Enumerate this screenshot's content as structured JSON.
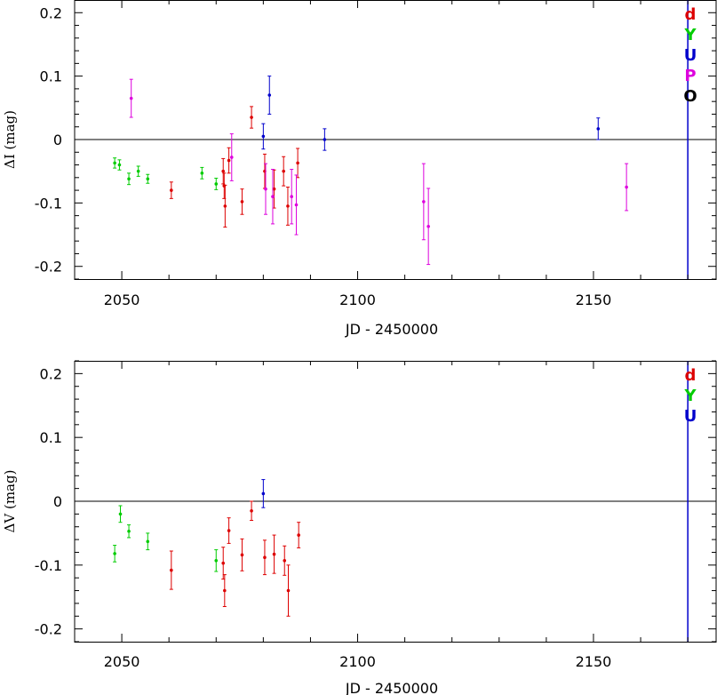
{
  "chart_data": [
    {
      "type": "scatter",
      "title": "",
      "xlabel": "JD - 2450000",
      "ylabel": "ΔI (mag)",
      "xlim": [
        2040,
        2176
      ],
      "ylim": [
        -0.22,
        0.22
      ],
      "xticks": [
        2050,
        2100,
        2150
      ],
      "xtick_labels": [
        "2050",
        "2100",
        "2150"
      ],
      "yticks": [
        -0.2,
        -0.1,
        0,
        0.1,
        0.2
      ],
      "ytick_labels": [
        "-0.2",
        "-0.1",
        "0",
        "0.1",
        "0.2"
      ],
      "zero_line": true,
      "vertical_line_x": 2170,
      "vertical_line_color": "#0000cc",
      "legend_position": "top-right",
      "legend": [
        {
          "label": "d",
          "color": "#dd0000"
        },
        {
          "label": "Y",
          "color": "#00cc00"
        },
        {
          "label": "U",
          "color": "#0000cc"
        },
        {
          "label": "P",
          "color": "#dd00dd"
        },
        {
          "label": "O",
          "color": "#000000"
        }
      ],
      "series": [
        {
          "color": "#00cc00",
          "points": [
            {
              "x": 2048.5,
              "y": -0.037,
              "err": 0.008
            },
            {
              "x": 2049.5,
              "y": -0.04,
              "err": 0.008
            },
            {
              "x": 2051.5,
              "y": -0.062,
              "err": 0.009
            },
            {
              "x": 2053.5,
              "y": -0.05,
              "err": 0.008
            },
            {
              "x": 2055.5,
              "y": -0.062,
              "err": 0.007
            },
            {
              "x": 2067.0,
              "y": -0.053,
              "err": 0.009
            },
            {
              "x": 2070.0,
              "y": -0.07,
              "err": 0.009
            }
          ]
        },
        {
          "color": "#dd0000",
          "points": [
            {
              "x": 2060.5,
              "y": -0.08,
              "err": 0.013
            },
            {
              "x": 2071.5,
              "y": -0.05,
              "err": 0.02
            },
            {
              "x": 2071.7,
              "y": -0.073,
              "err": 0.02
            },
            {
              "x": 2071.9,
              "y": -0.105,
              "err": 0.033
            },
            {
              "x": 2072.7,
              "y": -0.033,
              "err": 0.02
            },
            {
              "x": 2075.5,
              "y": -0.098,
              "err": 0.02
            },
            {
              "x": 2077.5,
              "y": 0.035,
              "err": 0.017
            },
            {
              "x": 2080.3,
              "y": -0.05,
              "err": 0.027
            },
            {
              "x": 2082.3,
              "y": -0.078,
              "err": 0.03
            },
            {
              "x": 2084.3,
              "y": -0.05,
              "err": 0.023
            },
            {
              "x": 2085.2,
              "y": -0.105,
              "err": 0.03
            },
            {
              "x": 2087.3,
              "y": -0.037,
              "err": 0.023
            }
          ]
        },
        {
          "color": "#0000cc",
          "points": [
            {
              "x": 2080.0,
              "y": 0.005,
              "err": 0.02
            },
            {
              "x": 2081.3,
              "y": 0.07,
              "err": 0.03
            },
            {
              "x": 2093.0,
              "y": 0.0,
              "err": 0.017
            },
            {
              "x": 2151.0,
              "y": 0.017,
              "err": 0.017
            }
          ]
        },
        {
          "color": "#dd00dd",
          "points": [
            {
              "x": 2052.0,
              "y": 0.065,
              "err": 0.03
            },
            {
              "x": 2073.3,
              "y": -0.028,
              "err": 0.037
            },
            {
              "x": 2080.5,
              "y": -0.078,
              "err": 0.04
            },
            {
              "x": 2082.0,
              "y": -0.09,
              "err": 0.043
            },
            {
              "x": 2086.0,
              "y": -0.09,
              "err": 0.043
            },
            {
              "x": 2087.0,
              "y": -0.103,
              "err": 0.047
            },
            {
              "x": 2114.0,
              "y": -0.098,
              "err": 0.06
            },
            {
              "x": 2115.0,
              "y": -0.137,
              "err": 0.06
            },
            {
              "x": 2157.0,
              "y": -0.075,
              "err": 0.037
            }
          ]
        }
      ]
    },
    {
      "type": "scatter",
      "title": "",
      "xlabel": "JD - 2450000",
      "ylabel": "ΔV (mag)",
      "xlim": [
        2040,
        2176
      ],
      "ylim": [
        -0.22,
        0.22
      ],
      "xticks": [
        2050,
        2100,
        2150
      ],
      "xtick_labels": [
        "2050",
        "2100",
        "2150"
      ],
      "yticks": [
        -0.2,
        -0.1,
        0,
        0.1,
        0.2
      ],
      "ytick_labels": [
        "-0.2",
        "-0.1",
        "0",
        "0.1",
        "0.2"
      ],
      "zero_line": true,
      "vertical_line_x": 2170,
      "vertical_line_color": "#0000cc",
      "legend_position": "top-right",
      "legend": [
        {
          "label": "d",
          "color": "#dd0000"
        },
        {
          "label": "Y",
          "color": "#00cc00"
        },
        {
          "label": "U",
          "color": "#0000cc"
        }
      ],
      "series": [
        {
          "color": "#00cc00",
          "points": [
            {
              "x": 2048.5,
              "y": -0.082,
              "err": 0.013
            },
            {
              "x": 2049.7,
              "y": -0.02,
              "err": 0.013
            },
            {
              "x": 2051.5,
              "y": -0.047,
              "err": 0.01
            },
            {
              "x": 2055.5,
              "y": -0.063,
              "err": 0.013
            },
            {
              "x": 2070.0,
              "y": -0.093,
              "err": 0.017
            }
          ]
        },
        {
          "color": "#dd0000",
          "points": [
            {
              "x": 2060.5,
              "y": -0.108,
              "err": 0.03
            },
            {
              "x": 2071.5,
              "y": -0.097,
              "err": 0.025
            },
            {
              "x": 2071.8,
              "y": -0.14,
              "err": 0.025
            },
            {
              "x": 2072.7,
              "y": -0.046,
              "err": 0.02
            },
            {
              "x": 2075.5,
              "y": -0.084,
              "err": 0.025
            },
            {
              "x": 2077.5,
              "y": -0.015,
              "err": 0.015
            },
            {
              "x": 2080.3,
              "y": -0.088,
              "err": 0.027
            },
            {
              "x": 2082.3,
              "y": -0.083,
              "err": 0.03
            },
            {
              "x": 2084.5,
              "y": -0.093,
              "err": 0.023
            },
            {
              "x": 2085.3,
              "y": -0.14,
              "err": 0.04
            },
            {
              "x": 2087.5,
              "y": -0.053,
              "err": 0.02
            }
          ]
        },
        {
          "color": "#0000cc",
          "points": [
            {
              "x": 2080.0,
              "y": 0.012,
              "err": 0.022
            }
          ]
        }
      ]
    }
  ]
}
